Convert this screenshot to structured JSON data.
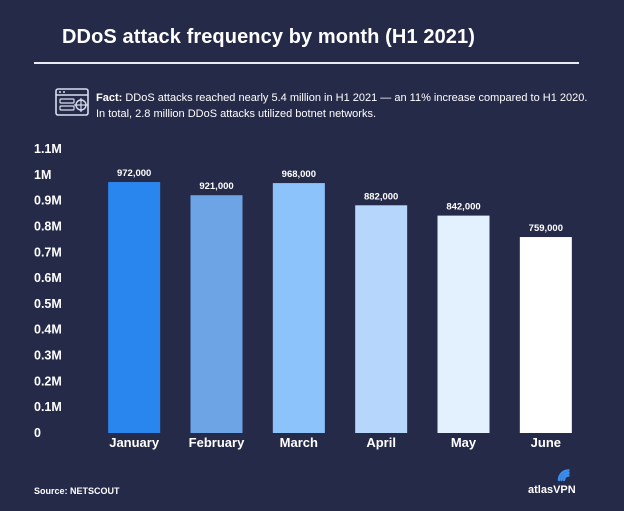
{
  "title": "DDoS attack frequency by month (H1 2021)",
  "fact": {
    "label": "Fact:",
    "text": "DDoS attacks reached nearly 5.4 million in H1 2021 — an 11% increase compared to H1 2020. In total, 2.8 million DDoS attacks utilized botnet networks.",
    "icon": "server-attack-icon"
  },
  "source": "Source: NETSCOUT",
  "brand": {
    "name": "atlasVPN",
    "icon": "atlasvpn-logo-icon"
  },
  "colors": {
    "background": "#262a49",
    "bars": [
      "#2a86ef",
      "#6ca4e6",
      "#8cc3fb",
      "#b7d6fb",
      "#e3f0fd",
      "#ffffff"
    ]
  },
  "chart_data": {
    "type": "bar",
    "title": "DDoS attack frequency by month (H1 2021)",
    "xlabel": "",
    "ylabel": "",
    "categories": [
      "January",
      "February",
      "March",
      "April",
      "May",
      "June"
    ],
    "values": [
      972000,
      921000,
      968000,
      882000,
      842000,
      759000
    ],
    "value_labels": [
      "972,000",
      "921,000",
      "968,000",
      "882,000",
      "842,000",
      "759,000"
    ],
    "ylim": [
      0,
      1100000
    ],
    "yticks": [
      0,
      100000,
      200000,
      300000,
      400000,
      500000,
      600000,
      700000,
      800000,
      900000,
      1000000,
      1100000
    ],
    "ytick_labels": [
      "0",
      "0.1M",
      "0.2M",
      "0.3M",
      "0.4M",
      "0.5M",
      "0.6M",
      "0.7M",
      "0.8M",
      "0.9M",
      "1M",
      "1.1M"
    ],
    "grid": false,
    "legend": "none"
  }
}
